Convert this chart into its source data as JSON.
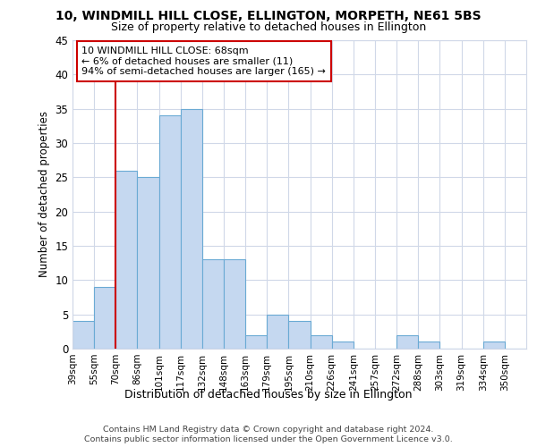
{
  "title1": "10, WINDMILL HILL CLOSE, ELLINGTON, MORPETH, NE61 5BS",
  "title2": "Size of property relative to detached houses in Ellington",
  "xlabel": "Distribution of detached houses by size in Ellington",
  "ylabel": "Number of detached properties",
  "bin_labels": [
    "39sqm",
    "55sqm",
    "70sqm",
    "86sqm",
    "101sqm",
    "117sqm",
    "132sqm",
    "148sqm",
    "163sqm",
    "179sqm",
    "195sqm",
    "210sqm",
    "226sqm",
    "241sqm",
    "257sqm",
    "272sqm",
    "288sqm",
    "303sqm",
    "319sqm",
    "334sqm",
    "350sqm"
  ],
  "values": [
    4,
    9,
    26,
    25,
    34,
    35,
    13,
    13,
    2,
    5,
    4,
    2,
    1,
    0,
    0,
    2,
    1,
    0,
    0,
    1,
    0
  ],
  "bar_color": "#c5d8f0",
  "bar_edge_color": "#6aaad4",
  "vline_index": 2,
  "annotation_text": "10 WINDMILL HILL CLOSE: 68sqm\n← 6% of detached houses are smaller (11)\n94% of semi-detached houses are larger (165) →",
  "annotation_box_color": "#ffffff",
  "annotation_box_edge_color": "#cc0000",
  "vline_color": "#cc0000",
  "ylim": [
    0,
    45
  ],
  "yticks": [
    0,
    5,
    10,
    15,
    20,
    25,
    30,
    35,
    40,
    45
  ],
  "footer1": "Contains HM Land Registry data © Crown copyright and database right 2024.",
  "footer2": "Contains public sector information licensed under the Open Government Licence v3.0.",
  "bg_color": "#ffffff",
  "plot_bg_color": "#ffffff",
  "grid_color": "#d0d8e8"
}
